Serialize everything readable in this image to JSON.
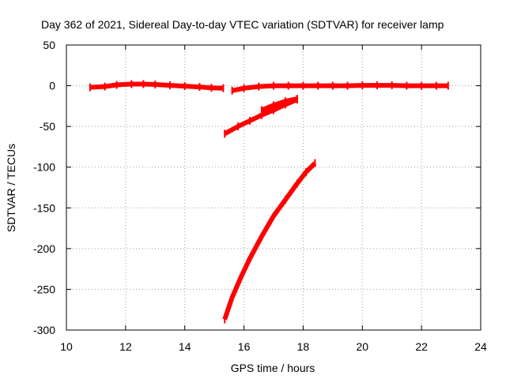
{
  "chart_data": {
    "type": "line",
    "title": "Day 362 of 2021, Sidereal Day-to-day VTEC variation (SDTVAR) for receiver lamp",
    "xlabel": "GPS time / hours",
    "ylabel": "SDTVAR / TECUs",
    "xlim": [
      10,
      24
    ],
    "ylim": [
      -300,
      50
    ],
    "xticks": [
      10,
      12,
      14,
      16,
      18,
      20,
      22,
      24
    ],
    "yticks": [
      50,
      0,
      -50,
      -100,
      -150,
      -200,
      -250,
      -300
    ],
    "grid": true,
    "color": "#ff0000",
    "series": [
      {
        "x": [
          10.8,
          11.3,
          11.7,
          12.2,
          12.6,
          13.0,
          13.5,
          14.0,
          14.5,
          14.9,
          15.3
        ],
        "y": [
          -2,
          -1,
          1,
          2,
          2,
          1.5,
          0.5,
          -0.5,
          -1.5,
          -2.5,
          -3
        ]
      },
      {
        "x": [
          15.6,
          16.0,
          16.5,
          17.0,
          17.5,
          18.0,
          18.5,
          19.0,
          19.5,
          20.0,
          20.5,
          21.0,
          21.5,
          22.0,
          22.5,
          22.9
        ],
        "y": [
          -6,
          -3,
          -1,
          0,
          0,
          0,
          0,
          0,
          0,
          0.5,
          0.5,
          0.5,
          0,
          0,
          0,
          0
        ]
      },
      {
        "x": [
          15.35,
          15.8,
          16.2,
          16.6,
          17.0,
          17.4,
          17.8
        ],
        "y": [
          -59,
          -50,
          -43,
          -36,
          -30,
          -23,
          -17
        ]
      },
      {
        "x": [
          16.6,
          17.0,
          17.4,
          17.8
        ],
        "y": [
          -30,
          -24,
          -19,
          -16
        ]
      },
      {
        "x": [
          15.35,
          15.6,
          15.9,
          16.2,
          16.6,
          17.0,
          17.4,
          17.8,
          18.1,
          18.4
        ],
        "y": [
          -287,
          -260,
          -235,
          -212,
          -185,
          -160,
          -140,
          -120,
          -106,
          -95
        ]
      }
    ]
  }
}
